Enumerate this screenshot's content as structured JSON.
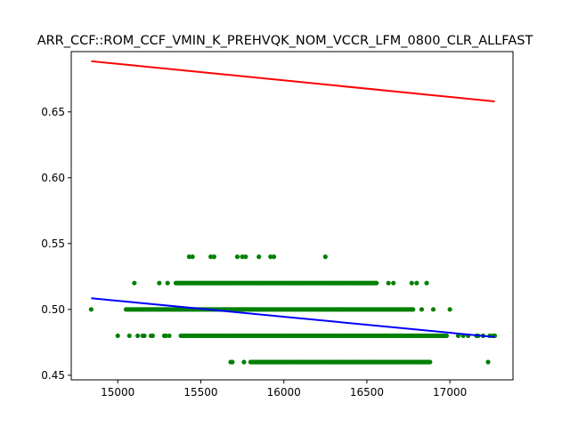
{
  "chart_data": {
    "type": "scatter",
    "title": "ARR_CCF::ROM_CCF_VMIN_K_PREHVQK_NOM_VCCR_LFM_0800_CLR_ALLFAST",
    "xlabel": "",
    "ylabel": "",
    "xlim": [
      14720,
      17380
    ],
    "ylim": [
      0.4465,
      0.6958
    ],
    "x_ticks": [
      15000,
      15500,
      16000,
      16500,
      17000
    ],
    "x_tick_labels": [
      "15000",
      "15500",
      "16000",
      "16500",
      "17000"
    ],
    "y_ticks": [
      0.45,
      0.5,
      0.55,
      0.6,
      0.65
    ],
    "y_tick_labels": [
      "0.45",
      "0.50",
      "0.55",
      "0.60",
      "0.65"
    ],
    "grid": false,
    "legend": "none",
    "scatter_color": "#008000",
    "bands": [
      {
        "y": 0.46,
        "segments": [
          [
            15800,
            16880
          ]
        ],
        "extra_x": [
          15680,
          15690,
          15760,
          17230
        ]
      },
      {
        "y": 0.48,
        "segments": [
          [
            15380,
            16980
          ]
        ],
        "extra_x": [
          15000,
          15070,
          15120,
          15150,
          15160,
          15200,
          15210,
          15280,
          15290,
          15310,
          17050,
          17080,
          17110,
          17160,
          17170,
          17200,
          17240,
          17260,
          17270
        ]
      },
      {
        "y": 0.5,
        "segments": [
          [
            15050,
            16780
          ]
        ],
        "extra_x": [
          14840,
          16830,
          16900,
          17000
        ]
      },
      {
        "y": 0.52,
        "segments": [
          [
            15350,
            16560
          ]
        ],
        "extra_x": [
          15100,
          15250,
          15300,
          16630,
          16660,
          16770,
          16800,
          16860
        ]
      },
      {
        "y": 0.54,
        "segments": [],
        "extra_x": [
          15430,
          15450,
          15560,
          15580,
          15720,
          15750,
          15770,
          15850,
          15920,
          15940,
          16250
        ]
      }
    ],
    "series": [
      {
        "name": "",
        "type": "line",
        "color": "#ff0000",
        "x": [
          14840,
          17270
        ],
        "y": [
          0.6885,
          0.658
        ]
      },
      {
        "name": "",
        "type": "line",
        "color": "#0000ff",
        "x": [
          14840,
          17270
        ],
        "y": [
          0.5085,
          0.479
        ]
      }
    ]
  }
}
